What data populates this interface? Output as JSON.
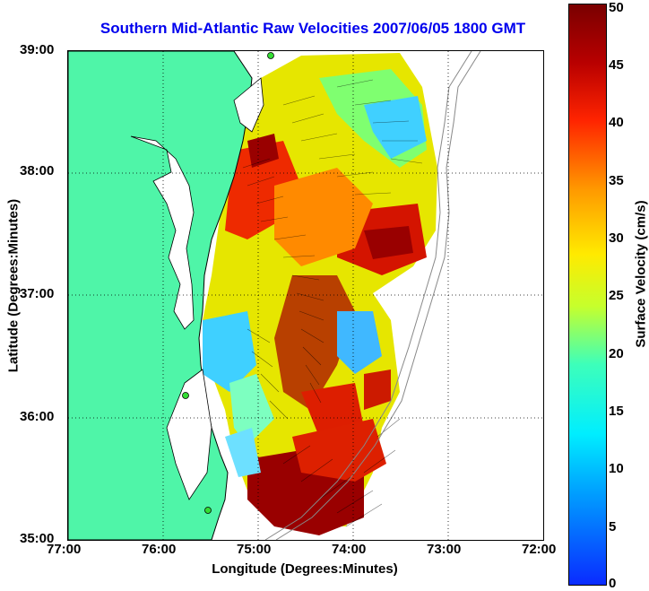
{
  "title": "Southern Mid-Atlantic Raw Velocities 2007/06/05 1800 GMT",
  "x_axis": {
    "label": "Longitude (Degrees:Minutes)",
    "ticks": [
      "77:00",
      "76:00",
      "75:00",
      "74:00",
      "73:00",
      "72:00"
    ]
  },
  "y_axis": {
    "label": "Latitude (Degrees:Minutes)",
    "ticks": [
      "39:00",
      "38:00",
      "37:00",
      "36:00",
      "35:00"
    ]
  },
  "colorbar": {
    "label": "Surface Velocity (cm/s)",
    "ticks": [
      "50",
      "45",
      "40",
      "35",
      "30",
      "25",
      "20",
      "15",
      "10",
      "5",
      "0"
    ],
    "range": [
      0,
      50
    ]
  },
  "colors": {
    "land": "#4ff5a8",
    "title": "#0000ee",
    "station": "#33dd33"
  }
}
